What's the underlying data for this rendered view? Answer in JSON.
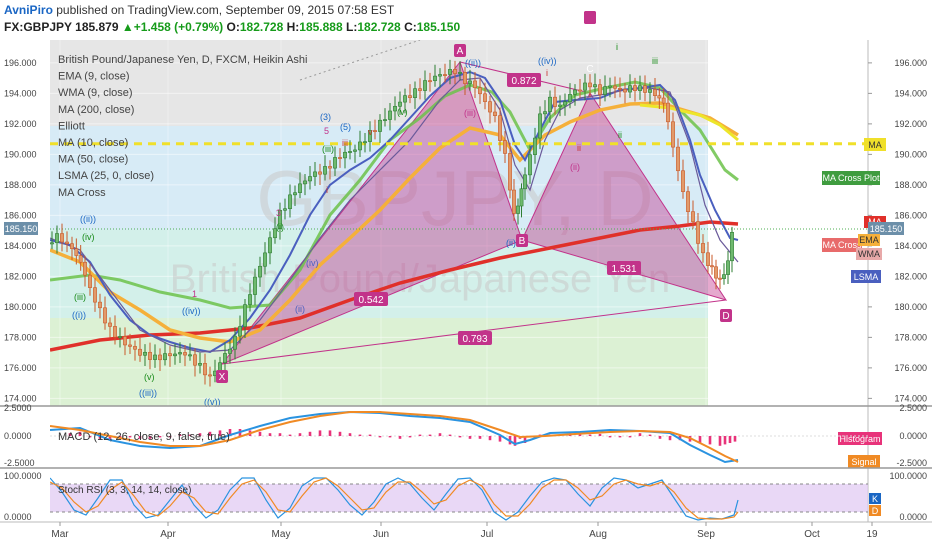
{
  "header": {
    "author": "AvniPiro",
    "published_text": "published on TradingView.com, September 09, 2015 07:58 EST",
    "symbol": "FX:GBPJPY",
    "last": "185.879",
    "change": "+1.458 (+0.79%)",
    "o_label": "O:",
    "o_value": "182.728",
    "h_label": "H:",
    "h_value": "185.888",
    "l_label": "L:",
    "l_value": "182.728",
    "c_label": "C:",
    "c_value": "185.150"
  },
  "legend": [
    "British Pound/Japanese Yen, D, FXCM, Heikin Ashi",
    "EMA (9, close)",
    "WMA (9, close)",
    "MA (200, close)",
    "Elliott",
    "MA (10, close)",
    "MA (50, close)",
    "LSMA (25, 0, close)",
    "MA Cross"
  ],
  "watermark": {
    "symbol": "GBPJPY, D",
    "name": "British Pound/Japanese Yen"
  },
  "right_labels": {
    "ma": "MA",
    "ma_cross_plot": "MA Cross Plot",
    "ma_cross": "MA Cross",
    "ema": "EMA",
    "wma": "WMA",
    "lsma": "LSMA",
    "price": "185.150",
    "histogram": "Histogram",
    "signal": "Signal",
    "k": "K",
    "d": "D"
  },
  "macd_label": "MACD (12, 26, close, 9, false, true)",
  "rsi_label": "Stoch RSI (3, 3, 14, 14, close)",
  "harmonic": {
    "x": "X",
    "a": "A",
    "b": "B",
    "c": "C",
    "d": "D",
    "r1": "0.542",
    "r2": "0.793",
    "r3": "0.872",
    "r4": "1.531"
  },
  "elliott_labels": {
    "ii_dbl": "((ii))",
    "iv_lower": "(iv)",
    "iii_lower": "(iii)",
    "i_dbl": "((i))",
    "v_lower": "(v)",
    "iii_dbl": "((iii))",
    "v_dbl": "((v))",
    "iv_dbl": "((iv))",
    "one": "1",
    "three": "3",
    "five": "5",
    "i_lower": "i",
    "iii_roman": "iii",
    "iv_roman": "iv",
    "v_roman": "v",
    "i_paren": "(i)",
    "ii_paren": "(ii)",
    "iii_paren": "(iii)",
    "iv_paren": "(iv)",
    "three_paren": "(3)",
    "five_paren": "(5)",
    "v_paren": "(v)",
    "ii_roman": "ii",
    "iv_dbl_top": "((iv))",
    "ii_roman_small": "ii",
    "i_dbl_top": "((i))",
    "iii_dbl_top": "(iii)",
    "ii_dbl_bottom": "((ii))",
    "one_paren": "((i))",
    "two_paren": "(ii)",
    "iii_p": "(iii)",
    "i_p": "(i)",
    "i": "i",
    "iii_small": "iii"
  },
  "chart_data": {
    "type": "candlestick",
    "title": "British Pound/Japanese Yen, D, FXCM, Heikin Ashi",
    "y_ticks": [
      "196.000",
      "194.000",
      "192.000",
      "190.000",
      "188.000",
      "186.000",
      "184.000",
      "182.000",
      "180.000",
      "178.000",
      "176.000",
      "174.000"
    ],
    "ylim": [
      173.5,
      197.5
    ],
    "x_ticks": [
      "Mar",
      "Apr",
      "May",
      "Jun",
      "Jul",
      "Aug",
      "Sep",
      "Oct",
      "19"
    ],
    "macd_ticks": [
      "2.5000",
      "0.0000",
      "-2.5000"
    ],
    "rsi_ticks": [
      "100.0000",
      "0.0000"
    ],
    "series": [
      {
        "name": "MA (200, close)",
        "color": "#e0302a"
      },
      {
        "name": "MA (50, close)",
        "color": "#f5b03a"
      },
      {
        "name": "EMA (9, close)",
        "color": "#4a5fbf"
      },
      {
        "name": "LSMA (25, 0, close)",
        "color": "#6cc24a"
      }
    ],
    "last_price": 185.15,
    "ma_level": 190.5
  },
  "colors": {
    "up": "#2e7d32",
    "down": "#c85a2a",
    "ma200": "#e0302a",
    "ma50": "#f5b03a",
    "ema": "#4a5fbf",
    "lsma": "#6cc24a",
    "harmonic": "#c2338a",
    "accent": "#1a66c4"
  }
}
